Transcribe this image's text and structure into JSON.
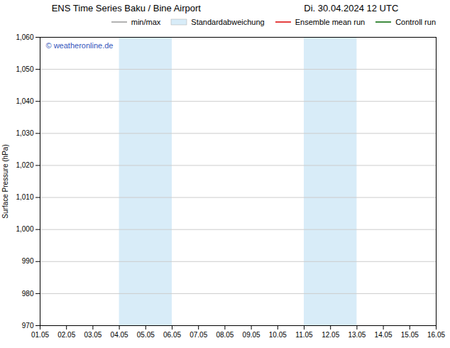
{
  "chart_data": {
    "type": "line",
    "title": "ENS Time Series Baku / Bine Airport",
    "subtitle": "Di. 30.04.2024 12 UTC",
    "y_label": "Surface Pressure (hPa)",
    "x": [
      "01.05",
      "02.05",
      "03.05",
      "04.05",
      "05.05",
      "06.05",
      "07.05",
      "08.05",
      "09.05",
      "10.05",
      "11.05",
      "12.05",
      "13.05",
      "14.05",
      "15.05",
      "16.05"
    ],
    "series": [
      {
        "name": "min/max",
        "type": "line",
        "color": "#999999",
        "values": [
          null,
          null,
          null,
          null,
          null,
          null,
          null,
          null,
          null,
          null,
          null,
          null,
          null,
          null,
          null,
          null
        ]
      },
      {
        "name": "Standardabweichung",
        "type": "area",
        "color": "#d8ecf8",
        "values": [
          null,
          null,
          null,
          null,
          null,
          null,
          null,
          null,
          null,
          null,
          null,
          null,
          null,
          null,
          null,
          null
        ]
      },
      {
        "name": "Ensemble mean run",
        "type": "line",
        "color": "#dd0000",
        "values": [
          null,
          null,
          null,
          null,
          null,
          null,
          null,
          null,
          null,
          null,
          null,
          null,
          null,
          null,
          null,
          null
        ]
      },
      {
        "name": "Controll run",
        "type": "line",
        "color": "#006600",
        "values": [
          null,
          null,
          null,
          null,
          null,
          null,
          null,
          null,
          null,
          null,
          null,
          null,
          null,
          null,
          null,
          null
        ]
      }
    ],
    "shaded_regions": [
      {
        "x_start": "04.05",
        "x_end": "06.05",
        "color": "#d8ecf8"
      },
      {
        "x_start": "11.05",
        "x_end": "13.05",
        "color": "#d8ecf8"
      }
    ],
    "annotations": [
      {
        "text": "© weatheronline.de",
        "color": "#3355bb"
      }
    ],
    "ylim": [
      970,
      1060
    ],
    "yticks": [
      970,
      980,
      990,
      1000,
      1010,
      1020,
      1030,
      1040,
      1050,
      1060
    ],
    "grid": true,
    "legend": "upper right"
  }
}
